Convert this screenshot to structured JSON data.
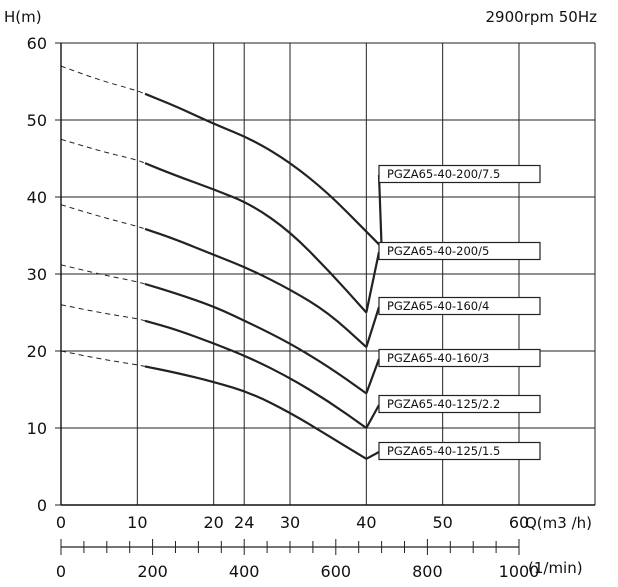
{
  "chart_data": {
    "type": "line",
    "title": "",
    "subtitle": "2900rpm 50Hz",
    "ylabel": "H(m)",
    "xlabel": "Q(m3 /h)",
    "x2label": "(1/min)",
    "ylim": [
      0,
      60
    ],
    "xlim": [
      0,
      60
    ],
    "yticks": [
      "0",
      "10",
      "20",
      "30",
      "40",
      "50",
      "60"
    ],
    "xticks": [
      {
        "value": 0,
        "label": "0"
      },
      {
        "value": 10,
        "label": "10"
      },
      {
        "value": 20,
        "label": "20"
      },
      {
        "value": 24,
        "label": "24"
      },
      {
        "value": 30,
        "label": "30"
      },
      {
        "value": 40,
        "label": "40"
      },
      {
        "value": 50,
        "label": "50"
      },
      {
        "value": 60,
        "label": "60"
      }
    ],
    "x2ticks": [
      "0",
      "200",
      "400",
      "600",
      "800",
      "1000"
    ],
    "x2max": 1000,
    "grid": true,
    "series": [
      {
        "name": "PGZA65-40-200/7.5",
        "x": [
          0,
          5,
          10,
          15,
          20,
          25,
          30,
          35,
          40,
          42
        ],
        "y": [
          57,
          55.2,
          53.8,
          51.8,
          49.5,
          47.5,
          44.5,
          40.5,
          35.5,
          33.5
        ],
        "solid_from": 11
      },
      {
        "name": "PGZA65-40-200/5",
        "x": [
          0,
          5,
          10,
          15,
          20,
          25,
          30,
          35,
          40
        ],
        "y": [
          47.5,
          46,
          44.8,
          42.8,
          41,
          39,
          35.5,
          30.5,
          25
        ],
        "solid_from": 11
      },
      {
        "name": "PGZA65-40-160/4",
        "x": [
          0,
          5,
          10,
          15,
          20,
          25,
          30,
          35,
          40
        ],
        "y": [
          39,
          37.5,
          36.2,
          34.5,
          32.5,
          30.5,
          28,
          25,
          20.5
        ],
        "solid_from": 11
      },
      {
        "name": "PGZA65-40-160/3",
        "x": [
          0,
          5,
          10,
          15,
          20,
          25,
          30,
          35,
          40
        ],
        "y": [
          31.2,
          30,
          29,
          27.5,
          25.8,
          23.5,
          21,
          18,
          14.5
        ],
        "solid_from": 11
      },
      {
        "name": "PGZA65-40-125/2.2",
        "x": [
          0,
          5,
          10,
          15,
          20,
          25,
          30,
          35,
          40
        ],
        "y": [
          26,
          25,
          24.2,
          22.8,
          21,
          19,
          16.5,
          13.5,
          10
        ],
        "solid_from": 11
      },
      {
        "name": "PGZA65-40-125/1.5",
        "x": [
          0,
          5,
          10,
          15,
          20,
          25,
          30,
          35,
          40
        ],
        "y": [
          20,
          19,
          18.2,
          17.2,
          16,
          14.5,
          12,
          9,
          6
        ],
        "solid_from": 11
      }
    ],
    "labels": [
      {
        "text": "PGZA65-40-200/7.5",
        "series": 0
      },
      {
        "text": "PGZA65-40-200/5",
        "series": 1
      },
      {
        "text": "PGZA65-40-160/4",
        "series": 2
      },
      {
        "text": "PGZA65-40-160/3",
        "series": 3
      },
      {
        "text": "PGZA65-40-125/2.2",
        "series": 4
      },
      {
        "text": "PGZA65-40-125/1.5",
        "series": 5
      }
    ]
  }
}
